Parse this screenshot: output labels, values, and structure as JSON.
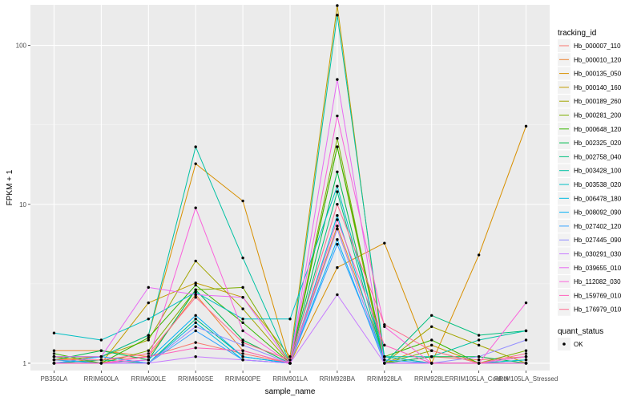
{
  "chart_data": {
    "type": "line",
    "x_label": "sample_name",
    "y_label": "FPKM + 1",
    "y_scale": "log10",
    "y_range": [
      0.9,
      180
    ],
    "y_ticks": [
      1,
      10,
      100
    ],
    "y_tick_labels": [
      "1",
      "10",
      "100"
    ],
    "grid": true,
    "legend_position": "right",
    "categories": [
      "PB350LA",
      "RRIM600LA",
      "RRIM600LE",
      "RRIM600SE",
      "RRIM600PE",
      "RRIM901LA",
      "RRIM928BA",
      "RRIM928LA",
      "RRIM928LE",
      "RRIM105LA_Control",
      "RRIM105LA_Stressed"
    ],
    "color_legend": {
      "title": "tracking_id"
    },
    "shape_legend": {
      "title": "quant_status",
      "items": [
        "OK"
      ]
    },
    "series": [
      {
        "name": "Hb_000007_110",
        "color": "#F8766D",
        "values": [
          1.0,
          1.05,
          1.1,
          1.35,
          1.15,
          1.0,
          7.0,
          1.0,
          1.1,
          1.05,
          1.1
        ]
      },
      {
        "name": "Hb_000010_120",
        "color": "#EA8331",
        "values": [
          1.2,
          1.2,
          1.1,
          2.7,
          1.2,
          1.0,
          7.3,
          1.1,
          1.0,
          1.0,
          1.1
        ]
      },
      {
        "name": "Hb_000135_050",
        "color": "#D89000",
        "values": [
          1.05,
          1.1,
          1.5,
          18.0,
          10.5,
          1.0,
          4.0,
          5.7,
          1.0,
          4.8,
          31.0
        ]
      },
      {
        "name": "Hb_000140_160",
        "color": "#C09B00",
        "values": [
          1.1,
          1.0,
          2.4,
          3.2,
          2.6,
          1.1,
          178.0,
          1.0,
          1.3,
          1.0,
          1.0
        ]
      },
      {
        "name": "Hb_000189_260",
        "color": "#A3A500",
        "values": [
          1.1,
          1.1,
          1.4,
          4.4,
          2.2,
          1.0,
          23.0,
          1.0,
          1.7,
          1.3,
          1.0
        ]
      },
      {
        "name": "Hb_000281_200",
        "color": "#7CAE00",
        "values": [
          1.0,
          1.0,
          1.2,
          2.9,
          3.0,
          1.0,
          26.0,
          1.0,
          1.2,
          1.0,
          1.2
        ]
      },
      {
        "name": "Hb_000648_120",
        "color": "#39B600",
        "values": [
          1.15,
          1.0,
          1.45,
          3.1,
          1.8,
          1.0,
          23.0,
          1.1,
          1.4,
          1.0,
          1.05
        ]
      },
      {
        "name": "Hb_002325_020",
        "color": "#00BB4E",
        "values": [
          1.05,
          1.2,
          1.05,
          2.9,
          1.4,
          1.0,
          16.0,
          1.0,
          1.1,
          1.1,
          1.0
        ]
      },
      {
        "name": "Hb_002758_040",
        "color": "#00BF7D",
        "values": [
          1.0,
          1.05,
          1.0,
          1.9,
          1.1,
          1.0,
          12.0,
          1.0,
          2.0,
          1.5,
          1.6
        ]
      },
      {
        "name": "Hb_003428_100",
        "color": "#00C1A3",
        "values": [
          1.1,
          1.1,
          1.5,
          23.0,
          4.6,
          1.0,
          155.0,
          1.1,
          1.1,
          1.4,
          1.6
        ]
      },
      {
        "name": "Hb_003538_020",
        "color": "#00BFC4",
        "values": [
          1.55,
          1.4,
          1.9,
          2.8,
          1.9,
          1.9,
          13.0,
          1.1,
          1.0,
          1.0,
          1.0
        ]
      },
      {
        "name": "Hb_006478_180",
        "color": "#00BAE0",
        "values": [
          1.0,
          1.1,
          1.0,
          1.8,
          1.05,
          1.0,
          8.5,
          1.0,
          1.0,
          1.0,
          1.05
        ]
      },
      {
        "name": "Hb_008092_090",
        "color": "#00B0F6",
        "values": [
          1.05,
          1.0,
          1.05,
          2.0,
          1.1,
          1.0,
          6.0,
          1.0,
          1.0,
          1.0,
          1.0
        ]
      },
      {
        "name": "Hb_027402_120",
        "color": "#35A2FF",
        "values": [
          1.0,
          1.1,
          1.0,
          1.6,
          1.05,
          1.0,
          5.6,
          1.05,
          1.0,
          1.0,
          1.0
        ]
      },
      {
        "name": "Hb_027445_090",
        "color": "#9590FF",
        "values": [
          1.0,
          1.0,
          1.0,
          1.7,
          1.3,
          1.0,
          7.0,
          1.0,
          1.0,
          1.1,
          1.4
        ]
      },
      {
        "name": "Hb_030291_030",
        "color": "#C77CFF",
        "values": [
          1.0,
          1.0,
          1.0,
          1.1,
          1.05,
          1.0,
          2.7,
          1.0,
          1.0,
          1.0,
          1.0
        ]
      },
      {
        "name": "Hb_039655_010",
        "color": "#E76BF3",
        "values": [
          1.1,
          1.1,
          3.0,
          2.7,
          2.6,
          1.0,
          61.0,
          1.0,
          1.0,
          1.0,
          1.1
        ]
      },
      {
        "name": "Hb_112082_030",
        "color": "#FA62DB",
        "values": [
          1.0,
          1.0,
          1.05,
          9.5,
          1.6,
          1.0,
          36.0,
          1.7,
          1.0,
          1.0,
          2.4
        ]
      },
      {
        "name": "Hb_159769_010",
        "color": "#FF62BC",
        "values": [
          1.0,
          1.0,
          1.1,
          1.25,
          1.2,
          1.0,
          8.0,
          1.3,
          1.0,
          1.0,
          1.0
        ]
      },
      {
        "name": "Hb_176979_010",
        "color": "#FF6C91",
        "values": [
          1.05,
          1.05,
          1.15,
          2.6,
          1.35,
          1.05,
          10.0,
          1.75,
          1.2,
          1.0,
          1.15
        ]
      }
    ]
  }
}
